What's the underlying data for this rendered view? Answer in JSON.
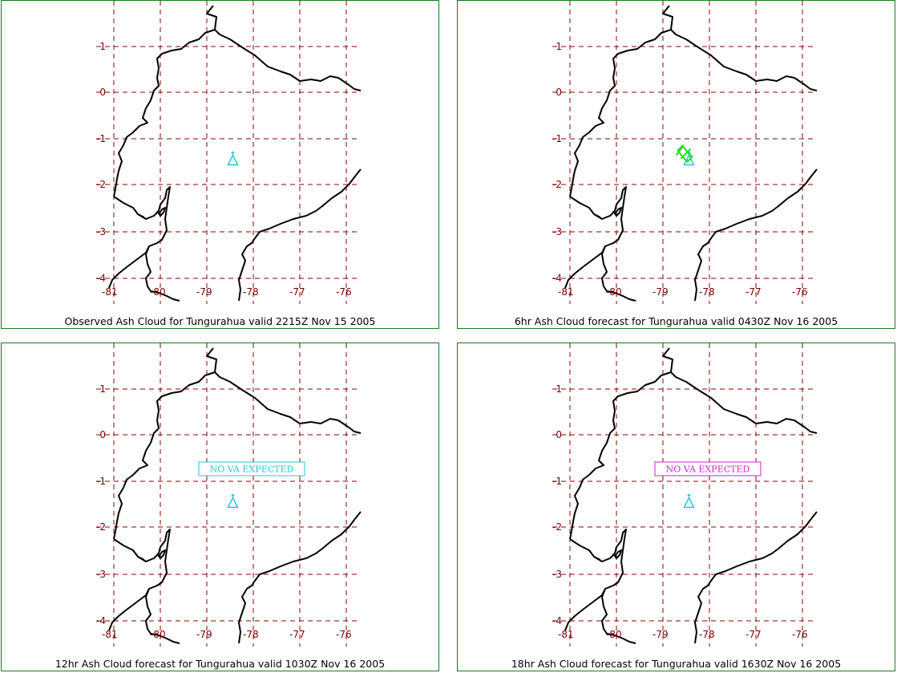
{
  "panels": [
    {
      "caption": "Observed Ash Cloud for Tungurahua valid 2215Z Nov 15 2005",
      "notice": "",
      "notice_color": "",
      "ash_cloud_color": ""
    },
    {
      "caption": "6hr Ash Cloud forecast for Tungurahua valid 0430Z Nov 16 2005",
      "notice": "",
      "notice_color": "",
      "ash_cloud_color": "#22dd22"
    },
    {
      "caption": "12hr Ash Cloud forecast for Tungurahua valid 1030Z Nov 16 2005",
      "notice": "NO VA EXPECTED",
      "notice_color": "#22c8d8",
      "ash_cloud_color": ""
    },
    {
      "caption": "18hr Ash Cloud forecast for Tungurahua valid 1630Z Nov 16 2005",
      "notice": "NO VA EXPECTED",
      "notice_color": "#cc22cc",
      "ash_cloud_color": ""
    }
  ],
  "map": {
    "lon_labels": [
      "-81",
      "-80",
      "-79",
      "-78",
      "-77",
      "-76"
    ],
    "lat_labels": [
      "1",
      "0",
      "-1",
      "-2",
      "-3",
      "-4"
    ],
    "volcano": {
      "name": "Tungurahua",
      "lat": -1.47,
      "lon": -78.44,
      "color": "#22c8d8"
    },
    "grid_color": "#8b0000",
    "border_color": "#1a7a1a"
  }
}
